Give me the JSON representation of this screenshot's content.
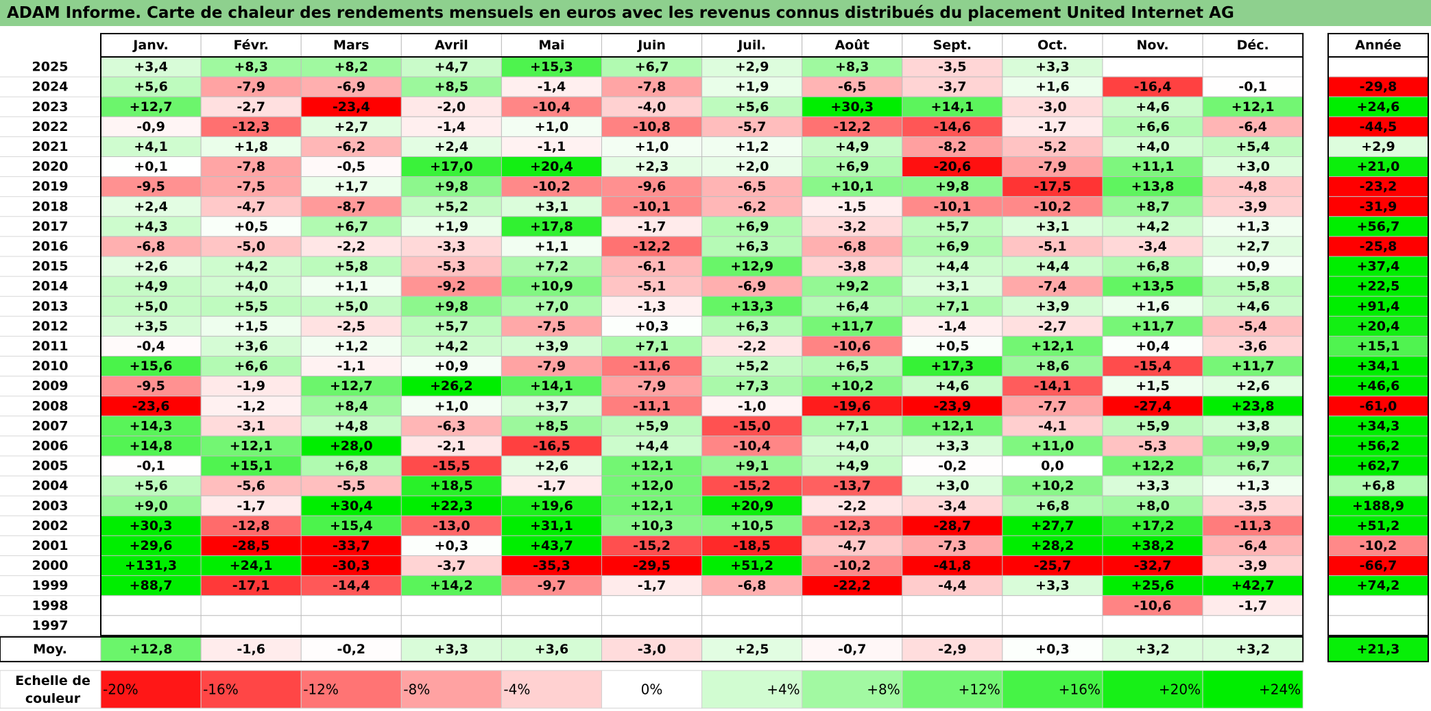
{
  "title": "ADAM Informe. Carte de chaleur des rendements mensuels en euros avec les revenus connus distribués du placement United Internet AG",
  "chart_data": {
    "type": "heatmap",
    "columns": [
      "Janv.",
      "Févr.",
      "Mars",
      "Avril",
      "Mai",
      "Juin",
      "Juil.",
      "Août",
      "Sept.",
      "Oct.",
      "Nov.",
      "Déc."
    ],
    "year_column_label": "Année",
    "rows": [
      {
        "year": "2025",
        "values": [
          "+3,4",
          "+8,3",
          "+8,2",
          "+4,7",
          "+15,3",
          "+6,7",
          "+2,9",
          "+8,3",
          "-3,5",
          "+3,3",
          "",
          ""
        ],
        "annual": ""
      },
      {
        "year": "2024",
        "values": [
          "+5,6",
          "-7,9",
          "-6,9",
          "+8,5",
          "-1,4",
          "-7,8",
          "+1,9",
          "-6,5",
          "-3,7",
          "+1,6",
          "-16,4",
          "-0,1"
        ],
        "annual": "-29,8"
      },
      {
        "year": "2023",
        "values": [
          "+12,7",
          "-2,7",
          "-23,4",
          "-2,0",
          "-10,4",
          "-4,0",
          "+5,6",
          "+30,3",
          "+14,1",
          "-3,0",
          "+4,6",
          "+12,1"
        ],
        "annual": "+24,6"
      },
      {
        "year": "2022",
        "values": [
          "-0,9",
          "-12,3",
          "+2,7",
          "-1,4",
          "+1,0",
          "-10,8",
          "-5,7",
          "-12,2",
          "-14,6",
          "-1,7",
          "+6,6",
          "-6,4"
        ],
        "annual": "-44,5"
      },
      {
        "year": "2021",
        "values": [
          "+4,1",
          "+1,8",
          "-6,2",
          "+2,4",
          "-1,1",
          "+1,0",
          "+1,2",
          "+4,9",
          "-8,2",
          "-5,2",
          "+4,0",
          "+5,4"
        ],
        "annual": "+2,9"
      },
      {
        "year": "2020",
        "values": [
          "+0,1",
          "-7,8",
          "-0,5",
          "+17,0",
          "+20,4",
          "+2,3",
          "+2,0",
          "+6,9",
          "-20,6",
          "-7,9",
          "+11,1",
          "+3,0"
        ],
        "annual": "+21,0"
      },
      {
        "year": "2019",
        "values": [
          "-9,5",
          "-7,5",
          "+1,7",
          "+9,8",
          "-10,2",
          "-9,6",
          "-6,5",
          "+10,1",
          "+9,8",
          "-17,5",
          "+13,8",
          "-4,8"
        ],
        "annual": "-23,2"
      },
      {
        "year": "2018",
        "values": [
          "+2,4",
          "-4,7",
          "-8,7",
          "+5,2",
          "+3,1",
          "-10,1",
          "-6,2",
          "-1,5",
          "-10,1",
          "-10,2",
          "+8,7",
          "-3,9"
        ],
        "annual": "-31,9"
      },
      {
        "year": "2017",
        "values": [
          "+4,3",
          "+0,5",
          "+6,7",
          "+1,9",
          "+17,8",
          "-1,7",
          "+6,9",
          "-3,2",
          "+5,7",
          "+3,1",
          "+4,2",
          "+1,3"
        ],
        "annual": "+56,7"
      },
      {
        "year": "2016",
        "values": [
          "-6,8",
          "-5,0",
          "-2,2",
          "-3,3",
          "+1,1",
          "-12,2",
          "+6,3",
          "-6,8",
          "+6,9",
          "-5,1",
          "-3,4",
          "+2,7"
        ],
        "annual": "-25,8"
      },
      {
        "year": "2015",
        "values": [
          "+2,6",
          "+4,2",
          "+5,8",
          "-5,3",
          "+7,2",
          "-6,1",
          "+12,9",
          "-3,8",
          "+4,4",
          "+4,4",
          "+6,8",
          "+0,9"
        ],
        "annual": "+37,4"
      },
      {
        "year": "2014",
        "values": [
          "+4,9",
          "+4,0",
          "+1,1",
          "-9,2",
          "+10,9",
          "-5,1",
          "-6,9",
          "+9,2",
          "+3,1",
          "-7,4",
          "+13,5",
          "+5,8"
        ],
        "annual": "+22,5"
      },
      {
        "year": "2013",
        "values": [
          "+5,0",
          "+5,5",
          "+5,0",
          "+9,8",
          "+7,0",
          "-1,3",
          "+13,3",
          "+6,4",
          "+7,1",
          "+3,9",
          "+1,6",
          "+4,6"
        ],
        "annual": "+91,4"
      },
      {
        "year": "2012",
        "values": [
          "+3,5",
          "+1,5",
          "-2,5",
          "+5,7",
          "-7,5",
          "+0,3",
          "+6,3",
          "+11,7",
          "-1,4",
          "-2,7",
          "+11,7",
          "-5,4"
        ],
        "annual": "+20,4"
      },
      {
        "year": "2011",
        "values": [
          "-0,4",
          "+3,6",
          "+1,2",
          "+4,2",
          "+3,9",
          "+7,1",
          "-2,2",
          "-10,6",
          "+0,5",
          "+12,1",
          "+0,4",
          "-3,6"
        ],
        "annual": "+15,1"
      },
      {
        "year": "2010",
        "values": [
          "+15,6",
          "+6,6",
          "-1,1",
          "+0,9",
          "-7,9",
          "-11,6",
          "+5,2",
          "+6,5",
          "+17,3",
          "+8,6",
          "-15,4",
          "+11,7"
        ],
        "annual": "+34,1"
      },
      {
        "year": "2009",
        "values": [
          "-9,5",
          "-1,9",
          "+12,7",
          "+26,2",
          "+14,1",
          "-7,9",
          "+7,3",
          "+10,2",
          "+4,6",
          "-14,1",
          "+1,5",
          "+2,6"
        ],
        "annual": "+46,6"
      },
      {
        "year": "2008",
        "values": [
          "-23,6",
          "-1,2",
          "+8,4",
          "+1,0",
          "+3,7",
          "-11,1",
          "-1,0",
          "-19,6",
          "-23,9",
          "-7,7",
          "-27,4",
          "+23,8"
        ],
        "annual": "-61,0"
      },
      {
        "year": "2007",
        "values": [
          "+14,3",
          "-3,1",
          "+4,8",
          "-6,3",
          "+8,5",
          "+5,9",
          "-15,0",
          "+7,1",
          "+12,1",
          "-4,1",
          "+5,9",
          "+3,8"
        ],
        "annual": "+34,3"
      },
      {
        "year": "2006",
        "values": [
          "+14,8",
          "+12,1",
          "+28,0",
          "-2,1",
          "-16,5",
          "+4,4",
          "-10,4",
          "+4,0",
          "+3,3",
          "+11,0",
          "-5,3",
          "+9,9"
        ],
        "annual": "+56,2"
      },
      {
        "year": "2005",
        "values": [
          "-0,1",
          "+15,1",
          "+6,8",
          "-15,5",
          "+2,6",
          "+12,1",
          "+9,1",
          "+4,9",
          "-0,2",
          "0,0",
          "+12,2",
          "+6,7"
        ],
        "annual": "+62,7"
      },
      {
        "year": "2004",
        "values": [
          "+5,6",
          "-5,6",
          "-5,5",
          "+18,5",
          "-1,7",
          "+12,0",
          "-15,2",
          "-13,7",
          "+3,0",
          "+10,2",
          "+3,3",
          "+1,3"
        ],
        "annual": "+6,8"
      },
      {
        "year": "2003",
        "values": [
          "+9,0",
          "-1,7",
          "+30,4",
          "+22,3",
          "+19,6",
          "+12,1",
          "+20,9",
          "-2,2",
          "-3,4",
          "+6,8",
          "+8,0",
          "-3,5"
        ],
        "annual": "+188,9"
      },
      {
        "year": "2002",
        "values": [
          "+30,3",
          "-12,8",
          "+15,4",
          "-13,0",
          "+31,1",
          "+10,3",
          "+10,5",
          "-12,3",
          "-28,7",
          "+27,7",
          "+17,2",
          "-11,3"
        ],
        "annual": "+51,2"
      },
      {
        "year": "2001",
        "values": [
          "+29,6",
          "-28,5",
          "-33,7",
          "+0,3",
          "+43,7",
          "-15,2",
          "-18,5",
          "-4,7",
          "-7,3",
          "+28,2",
          "+38,2",
          "-6,4"
        ],
        "annual": "-10,2"
      },
      {
        "year": "2000",
        "values": [
          "+131,3",
          "+24,1",
          "-30,3",
          "-3,7",
          "-35,3",
          "-29,5",
          "+51,2",
          "-10,2",
          "-41,8",
          "-25,7",
          "-32,7",
          "-3,9"
        ],
        "annual": "-66,7"
      },
      {
        "year": "1999",
        "values": [
          "+88,7",
          "-17,1",
          "-14,4",
          "+14,2",
          "-9,7",
          "-1,7",
          "-6,8",
          "-22,2",
          "-4,4",
          "+3,3",
          "+25,6",
          "+42,7"
        ],
        "annual": "+74,2"
      },
      {
        "year": "1998",
        "values": [
          "",
          "",
          "",
          "",
          "",
          "",
          "",
          "",
          "",
          "",
          "-10,6",
          "-1,7"
        ],
        "annual": ""
      },
      {
        "year": "1997",
        "values": [
          "",
          "",
          "",
          "",
          "",
          "",
          "",
          "",
          "",
          "",
          "",
          ""
        ],
        "annual": ""
      }
    ],
    "average": {
      "label": "Moy.",
      "values": [
        "+12,8",
        "-1,6",
        "-0,2",
        "+3,3",
        "+3,6",
        "-3,0",
        "+2,5",
        "-0,7",
        "-2,9",
        "+0,3",
        "+3,2",
        "+3,2"
      ],
      "annual": "+21,3"
    },
    "color_scale": {
      "label_line1": "Echelle de",
      "label_line2": "couleur",
      "steps": [
        "-20%",
        "-16%",
        "-12%",
        "-8%",
        "-4%",
        "0%",
        "+4%",
        "+8%",
        "+12%",
        "+16%",
        "+20%",
        "+24%"
      ]
    },
    "colors": {
      "negative_max": "#ff0000",
      "neutral": "#ffffff",
      "positive_max": "#00ee00",
      "title_bg": "#8ed08e"
    }
  }
}
